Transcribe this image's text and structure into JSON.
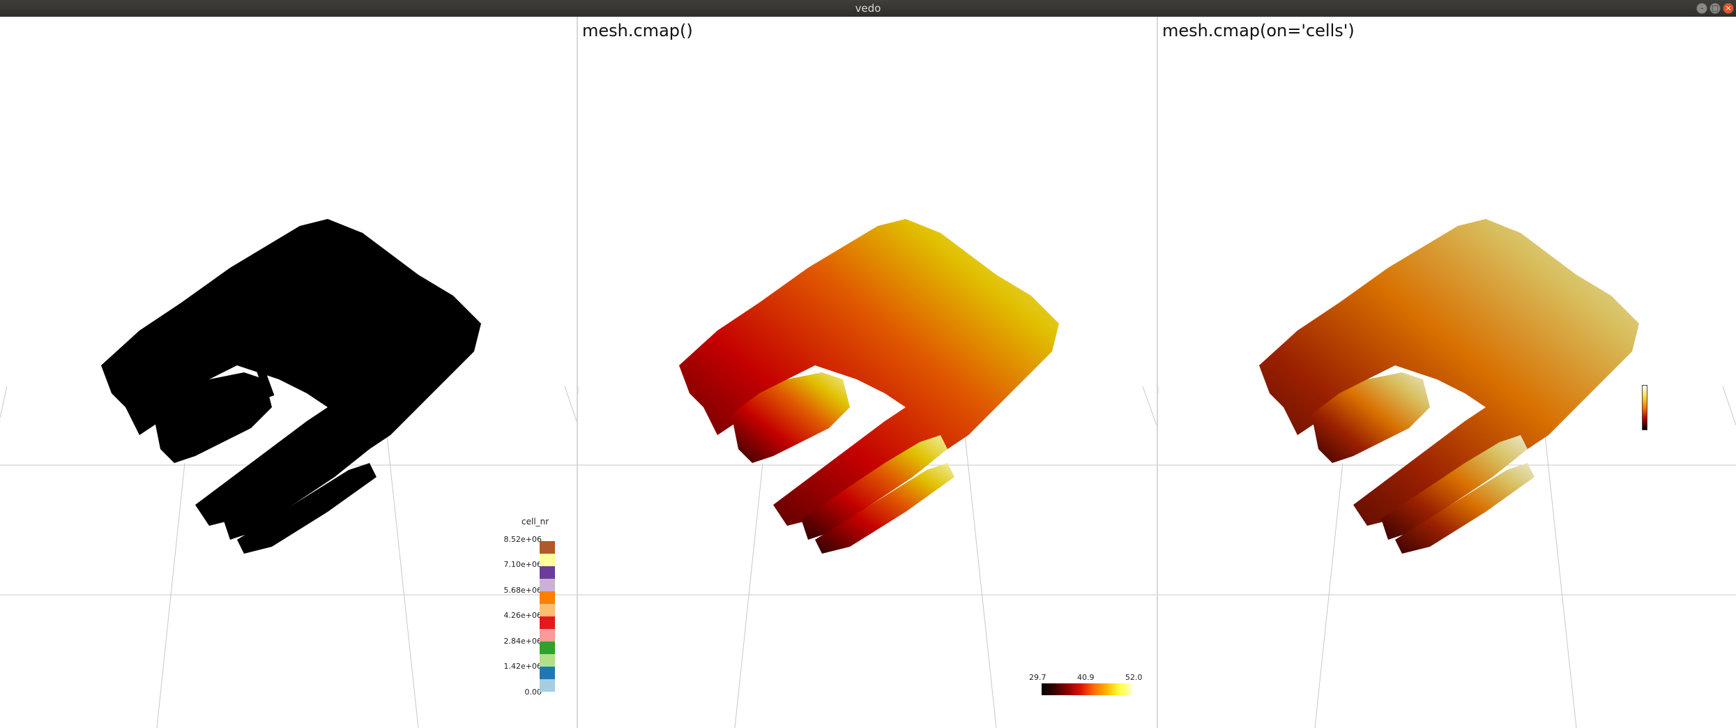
{
  "window": {
    "title": "vedo",
    "buttons": {
      "minimize": "–",
      "maximize": "□",
      "close": "×"
    }
  },
  "viewports": [
    {
      "title": "",
      "mesh_color": "black"
    },
    {
      "title": "mesh.cmap()",
      "mesh_color": "hot (black-red-yellow-white)"
    },
    {
      "title": "mesh.cmap(on='cells')",
      "mesh_color": "hot, reversed orientation"
    }
  ],
  "legend": {
    "title": "cell_nr",
    "labels": [
      "8.52e+06",
      "7.10e+06",
      "5.68e+06",
      "4.26e+06",
      "2.84e+06",
      "1.42e+06",
      "0.00"
    ],
    "swatch_colors": [
      "#b15928",
      "#ffff99",
      "#6a3d9a",
      "#cab2d6",
      "#ff7f00",
      "#fdbf6f",
      "#e31a1c",
      "#fb9a99",
      "#33a02c",
      "#b2df8a",
      "#1f78b4",
      "#a6cee3"
    ]
  },
  "colorbar": {
    "min_label": "29.7",
    "mid_label": "40.9",
    "max_label": "52.0"
  },
  "colors": {
    "background": "#ffffff",
    "titlebar": "#3c3b37",
    "axis_lines": "#c8c8c8"
  }
}
